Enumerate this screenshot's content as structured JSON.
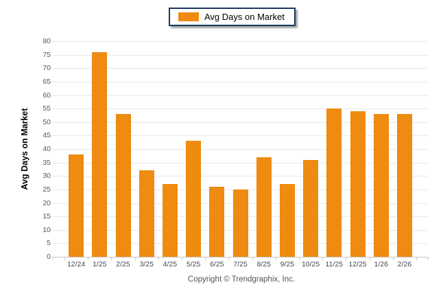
{
  "legend": {
    "label": "Avg Days on Market"
  },
  "y_axis_title": "Avg Days on Market",
  "footer": {
    "copyright": "Copyright © Trendgraphix, Inc."
  },
  "colors": {
    "bar": "#ee8b10",
    "grid": "#e8e8e8",
    "baseline": "#c6c6c6",
    "legend_border": "#17375e"
  },
  "chart_data": {
    "type": "bar",
    "title": "",
    "categories": [
      "12/24",
      "1/25",
      "2/25",
      "3/25",
      "4/25",
      "5/25",
      "6/25",
      "7/25",
      "8/25",
      "9/25",
      "10/25",
      "11/25",
      "12/25",
      "1/26",
      "2/26"
    ],
    "values": [
      38,
      76,
      53,
      32,
      27,
      43,
      26,
      25,
      37,
      27,
      36,
      55,
      54,
      53,
      53
    ],
    "series_name": "Avg Days on Market",
    "xlabel": "",
    "ylabel": "Avg Days on Market",
    "ylim": [
      0,
      80
    ],
    "ytick_step": 5,
    "grid": true,
    "legend_position": "top-center",
    "bar_color": "#ee8b10"
  }
}
